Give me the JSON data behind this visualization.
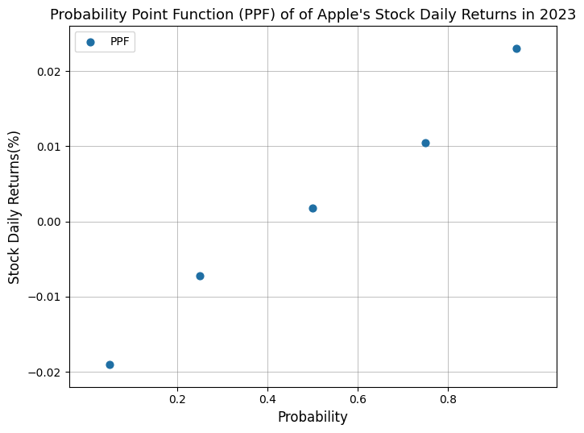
{
  "title": "Probability Point Function (PPF) of of Apple's Stock Daily Returns in 2023",
  "xlabel": "Probability",
  "ylabel": "Stock Daily Returns(%)",
  "x": [
    0.05,
    0.25,
    0.5,
    0.75,
    0.95
  ],
  "y": [
    -0.019,
    -0.0072,
    0.0018,
    0.0105,
    0.023
  ],
  "marker_color": "#1f6fa4",
  "marker_size": 40,
  "xlim": [
    -0.04,
    1.04
  ],
  "ylim": [
    -0.022,
    0.026
  ],
  "xticks": [
    0.2,
    0.4,
    0.6,
    0.8
  ],
  "yticks": [
    -0.02,
    -0.01,
    0.0,
    0.01,
    0.02
  ],
  "legend_label": "PPF",
  "grid": true,
  "title_fontsize": 13,
  "axis_label_fontsize": 12
}
